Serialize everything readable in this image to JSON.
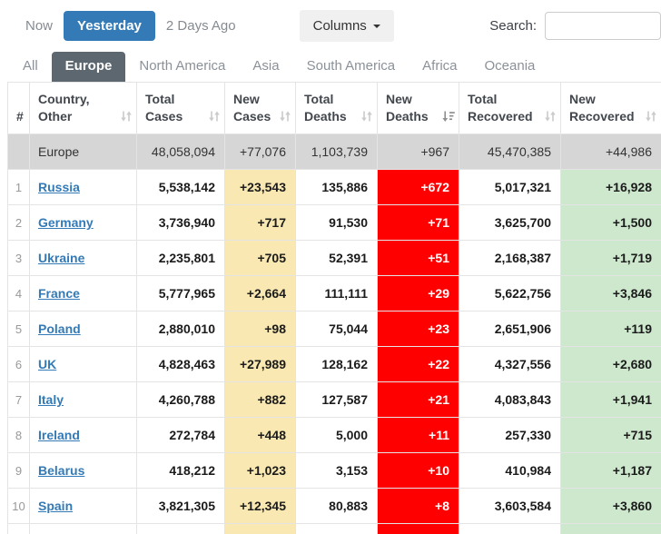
{
  "toolbar": {
    "now_label": "Now",
    "yesterday_label": "Yesterday",
    "two_days_ago_label": "2 Days Ago",
    "columns_label": "Columns",
    "search_label": "Search:",
    "search_value": ""
  },
  "tabs": [
    {
      "label": "All",
      "active": false
    },
    {
      "label": "Europe",
      "active": true
    },
    {
      "label": "North America",
      "active": false
    },
    {
      "label": "Asia",
      "active": false
    },
    {
      "label": "South America",
      "active": false
    },
    {
      "label": "Africa",
      "active": false
    },
    {
      "label": "Oceania",
      "active": false
    }
  ],
  "table": {
    "columns": [
      {
        "key": "rank",
        "label": "#",
        "sort": "none"
      },
      {
        "key": "country",
        "label": "Country, Other",
        "sort": "inactive"
      },
      {
        "key": "total_cases",
        "label": "Total Cases",
        "sort": "inactive"
      },
      {
        "key": "new_cases",
        "label": "New Cases",
        "sort": "inactive"
      },
      {
        "key": "total_deaths",
        "label": "Total Deaths",
        "sort": "inactive"
      },
      {
        "key": "new_deaths",
        "label": "New Deaths",
        "sort": "desc"
      },
      {
        "key": "total_recovered",
        "label": "Total Recovered",
        "sort": "inactive"
      },
      {
        "key": "new_recovered",
        "label": "New Recovered",
        "sort": "inactive"
      }
    ],
    "summary_row": {
      "name": "Europe",
      "total_cases": "48,058,094",
      "new_cases": "+77,076",
      "total_deaths": "1,103,739",
      "new_deaths": "+967",
      "total_recovered": "45,470,385",
      "new_recovered": "+44,986"
    },
    "rows": [
      {
        "rank": "1",
        "country": "Russia",
        "total_cases": "5,538,142",
        "new_cases": "+23,543",
        "total_deaths": "135,886",
        "new_deaths": "+672",
        "total_recovered": "5,017,321",
        "new_recovered": "+16,928"
      },
      {
        "rank": "2",
        "country": "Germany",
        "total_cases": "3,736,940",
        "new_cases": "+717",
        "total_deaths": "91,530",
        "new_deaths": "+71",
        "total_recovered": "3,625,700",
        "new_recovered": "+1,500"
      },
      {
        "rank": "3",
        "country": "Ukraine",
        "total_cases": "2,235,801",
        "new_cases": "+705",
        "total_deaths": "52,391",
        "new_deaths": "+51",
        "total_recovered": "2,168,387",
        "new_recovered": "+1,719"
      },
      {
        "rank": "4",
        "country": "France",
        "total_cases": "5,777,965",
        "new_cases": "+2,664",
        "total_deaths": "111,111",
        "new_deaths": "+29",
        "total_recovered": "5,622,756",
        "new_recovered": "+3,846"
      },
      {
        "rank": "5",
        "country": "Poland",
        "total_cases": "2,880,010",
        "new_cases": "+98",
        "total_deaths": "75,044",
        "new_deaths": "+23",
        "total_recovered": "2,651,906",
        "new_recovered": "+119"
      },
      {
        "rank": "6",
        "country": "UK",
        "total_cases": "4,828,463",
        "new_cases": "+27,989",
        "total_deaths": "128,162",
        "new_deaths": "+22",
        "total_recovered": "4,327,556",
        "new_recovered": "+2,680"
      },
      {
        "rank": "7",
        "country": "Italy",
        "total_cases": "4,260,788",
        "new_cases": "+882",
        "total_deaths": "127,587",
        "new_deaths": "+21",
        "total_recovered": "4,083,843",
        "new_recovered": "+1,941"
      },
      {
        "rank": "8",
        "country": "Ireland",
        "total_cases": "272,784",
        "new_cases": "+448",
        "total_deaths": "5,000",
        "new_deaths": "+11",
        "total_recovered": "257,330",
        "new_recovered": "+715"
      },
      {
        "rank": "9",
        "country": "Belarus",
        "total_cases": "418,212",
        "new_cases": "+1,023",
        "total_deaths": "3,153",
        "new_deaths": "+10",
        "total_recovered": "410,984",
        "new_recovered": "+1,187"
      },
      {
        "rank": "10",
        "country": "Spain",
        "total_cases": "3,821,305",
        "new_cases": "+12,345",
        "total_deaths": "80,883",
        "new_deaths": "+8",
        "total_recovered": "3,603,584",
        "new_recovered": "+3,860"
      },
      {
        "rank": "",
        "country": "",
        "total_cases": "",
        "new_cases": "",
        "total_deaths": "",
        "new_deaths": "",
        "total_recovered": "",
        "new_recovered": ""
      }
    ]
  },
  "colors": {
    "accent_blue": "#337ab7",
    "active_tab_bg": "#5d6770",
    "new_cases_bg": "#f9e8b1",
    "new_deaths_bg": "#ff0000",
    "new_recovered_bg": "#cde8cd",
    "summary_row_bg": "#d6d6d6"
  }
}
